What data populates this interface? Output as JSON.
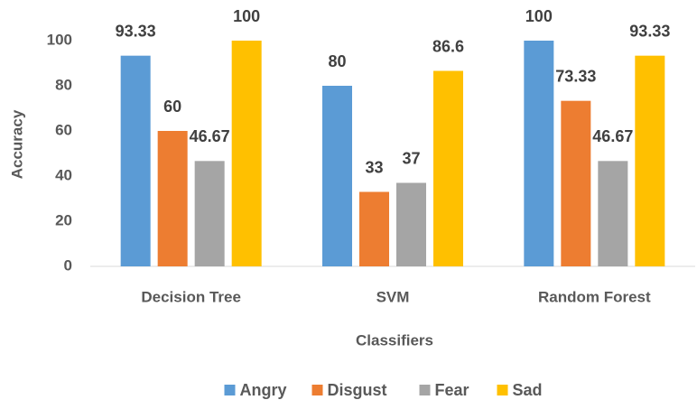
{
  "chart_data": {
    "type": "bar",
    "categories": [
      "Decision Tree",
      "SVM",
      "Random Forest"
    ],
    "series": [
      {
        "name": "Angry",
        "color": "#5b9bd5",
        "values": [
          93.33,
          80,
          100
        ]
      },
      {
        "name": "Disgust",
        "color": "#ed7d31",
        "values": [
          60,
          33,
          73.33
        ]
      },
      {
        "name": "Fear",
        "color": "#a5a5a5",
        "values": [
          46.67,
          37,
          46.67
        ]
      },
      {
        "name": "Sad",
        "color": "#ffc000",
        "values": [
          100,
          86.6,
          93.33
        ]
      }
    ],
    "ylim": [
      0,
      100
    ],
    "yticks": [
      0,
      20,
      40,
      60,
      80,
      100
    ],
    "x_label": "Classifiers",
    "y_label": "Accuracy",
    "grid": false,
    "legend": "bottom"
  }
}
